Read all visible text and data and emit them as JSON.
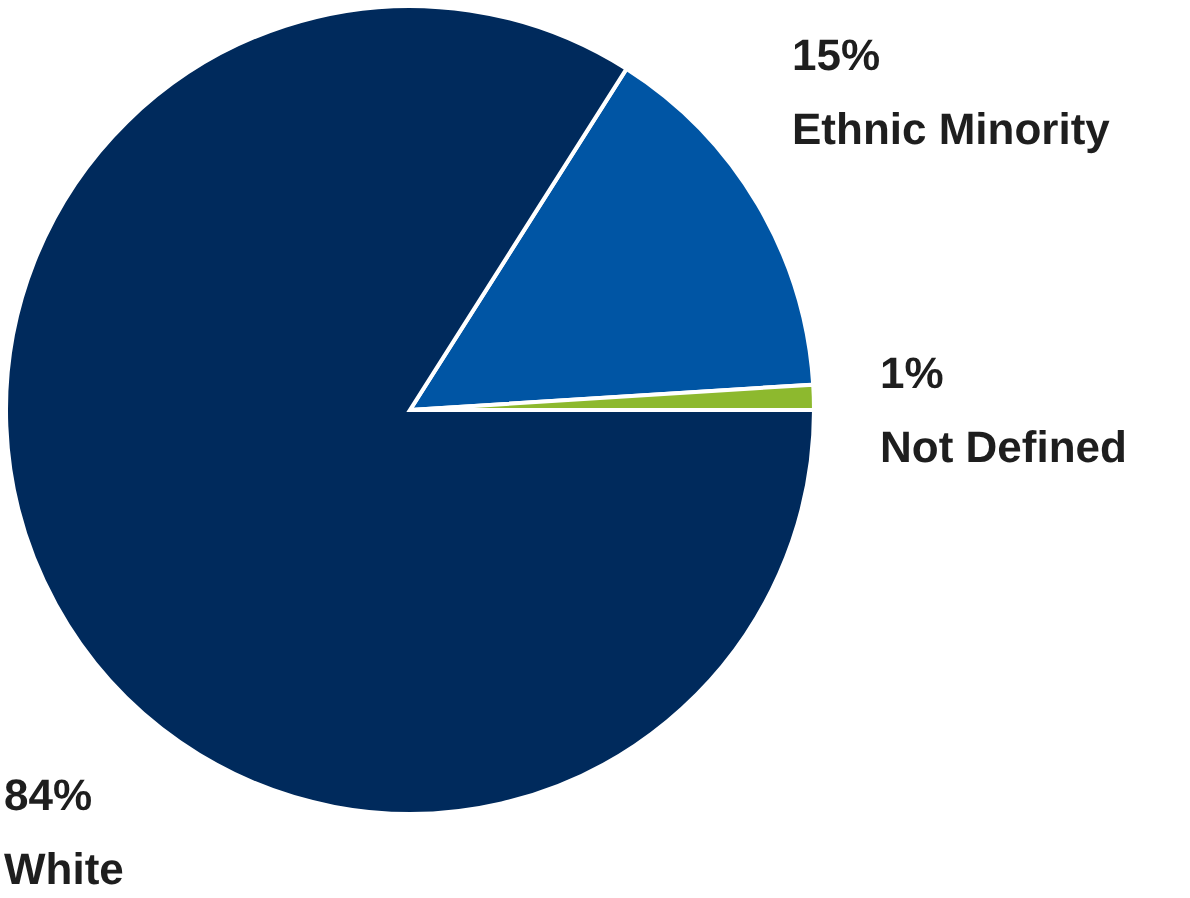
{
  "chart_data": {
    "type": "pie",
    "categories": [
      "Ethnic Minority",
      "Not Defined",
      "White"
    ],
    "values": [
      15,
      1,
      84
    ],
    "colors": [
      "#0055a4",
      "#8db92e",
      "#002a5c"
    ],
    "value_labels": [
      "15%",
      "1%",
      "84%"
    ]
  }
}
